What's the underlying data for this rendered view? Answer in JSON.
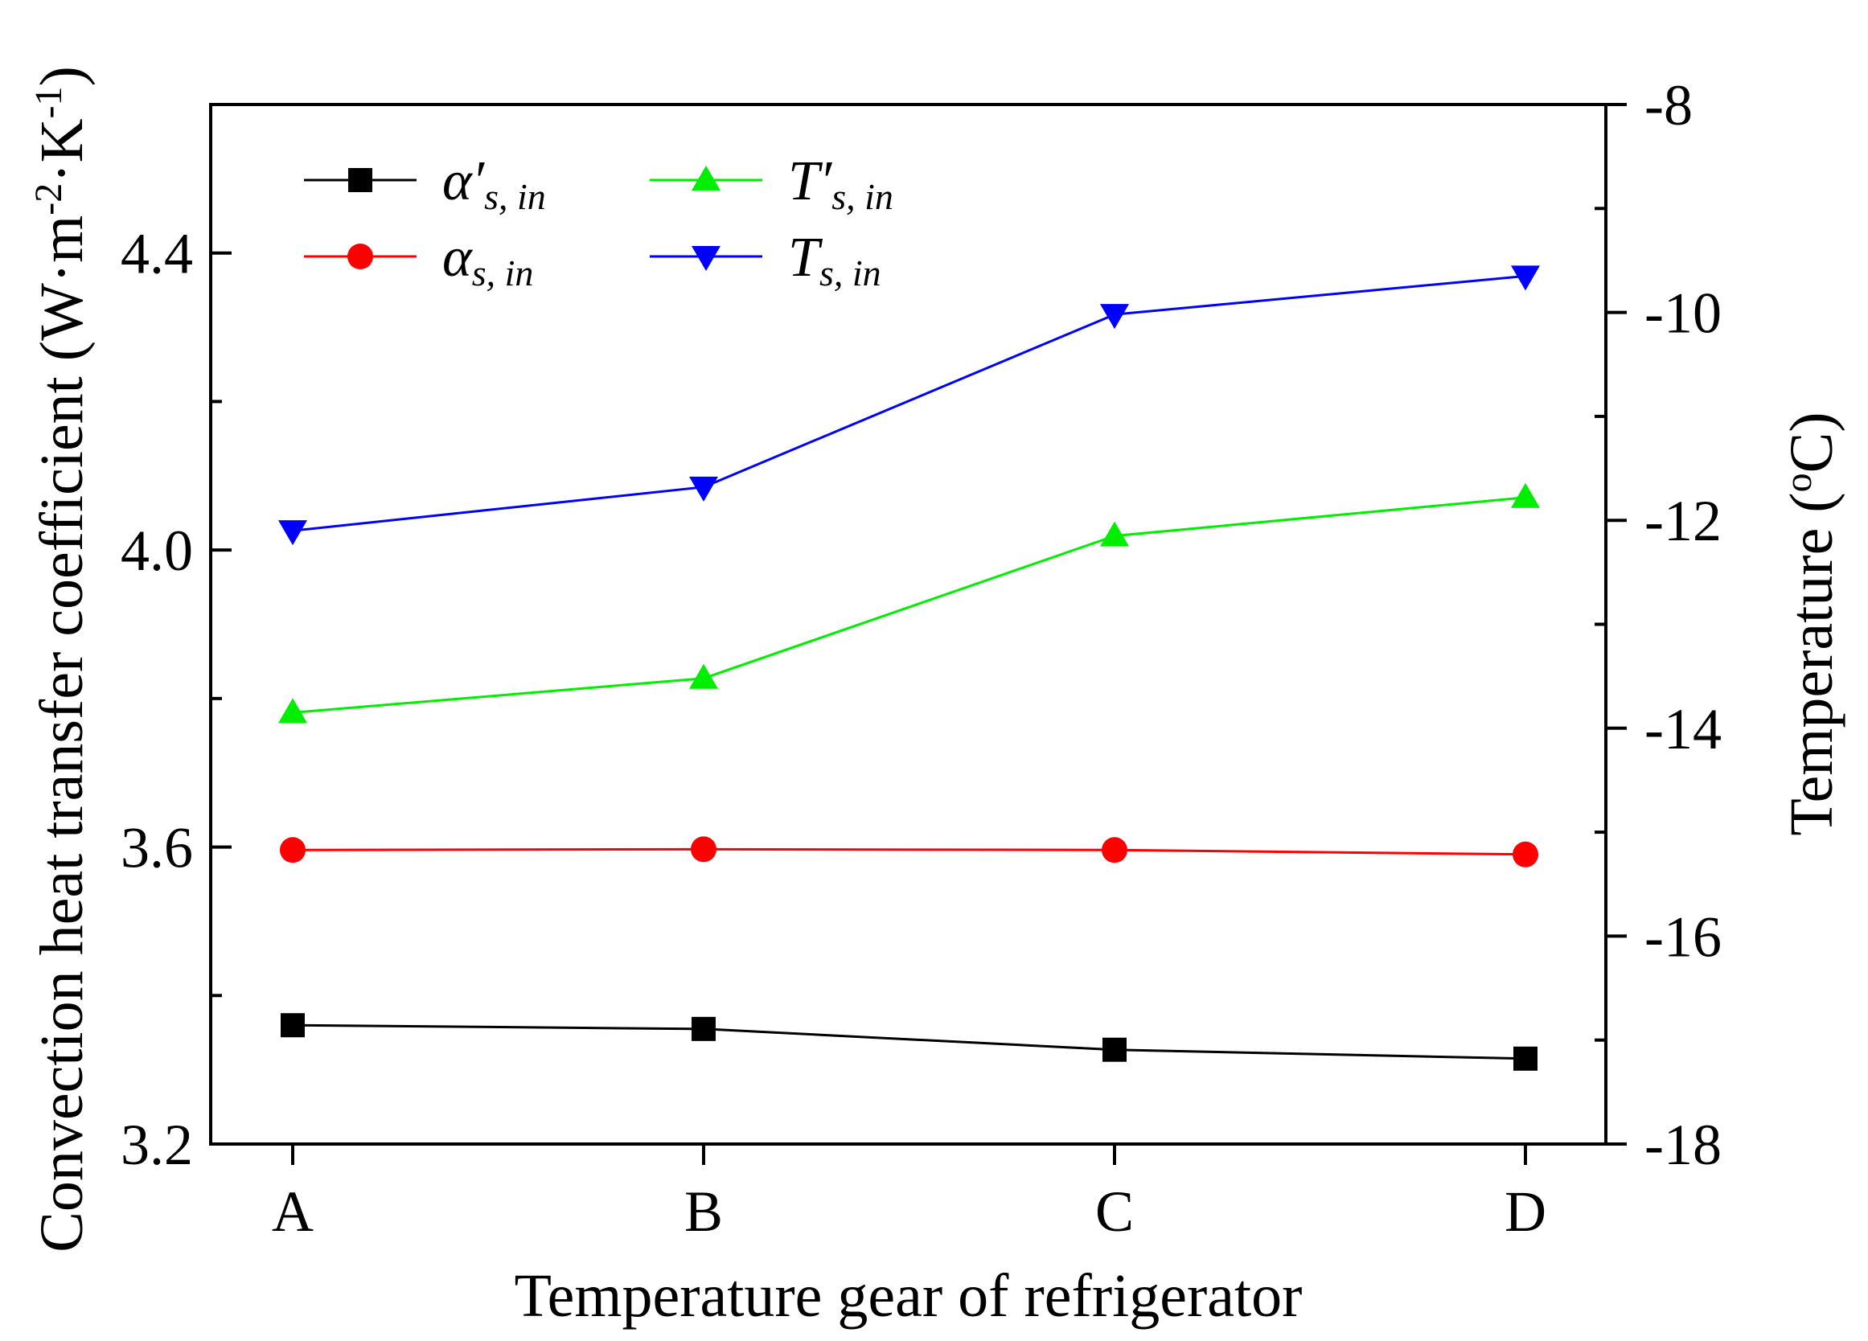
{
  "chart_data": {
    "type": "line",
    "categories": [
      "A",
      "B",
      "C",
      "D"
    ],
    "xlabel": "Temperature gear of refrigerator",
    "left_axis": {
      "label": "Convection heat transfer coefficient (W·m",
      "label_sup1": "-2",
      "label_mid": "·K",
      "label_sup2": "-1",
      "label_end": ")",
      "ylim": [
        3.2,
        4.6
      ],
      "major_ticks": [
        3.2,
        3.6,
        4.0,
        4.4
      ],
      "tick_labels": [
        "3.2",
        "3.6",
        "4.0",
        "4.4"
      ],
      "minor_ticks": [
        3.4,
        3.8,
        4.2
      ]
    },
    "right_axis": {
      "label": "Temperature (",
      "label_sup": "o",
      "label_end": "C)",
      "ylim": [
        -18,
        -8
      ],
      "major_ticks": [
        -18,
        -16,
        -14,
        -12,
        -10,
        -8
      ],
      "tick_labels": [
        "-18",
        "-16",
        "-14",
        "-12",
        "-10",
        "-8"
      ],
      "minor_ticks": [
        -17,
        -15,
        -13,
        -11,
        -9
      ]
    },
    "series": [
      {
        "key": "alpha_prime",
        "symbol": "α′",
        "sub": "s, in",
        "axis": "left",
        "color": "#000000",
        "marker": "square",
        "values": [
          3.36,
          3.355,
          3.327,
          3.315
        ]
      },
      {
        "key": "alpha",
        "symbol": "α",
        "sub": "s, in",
        "axis": "left",
        "color": "#ff0000",
        "marker": "circle",
        "values": [
          3.596,
          3.597,
          3.596,
          3.59
        ]
      },
      {
        "key": "T_prime",
        "symbol": "T′",
        "sub": "s, in",
        "axis": "right",
        "color": "#00ee00",
        "marker": "triangle-up",
        "values": [
          -13.85,
          -13.52,
          -12.15,
          -11.78
        ]
      },
      {
        "key": "T",
        "symbol": "T",
        "sub": "s, in",
        "axis": "right",
        "color": "#0000ff",
        "marker": "triangle-down",
        "values": [
          -12.1,
          -11.68,
          -10.02,
          -9.65
        ]
      }
    ]
  }
}
